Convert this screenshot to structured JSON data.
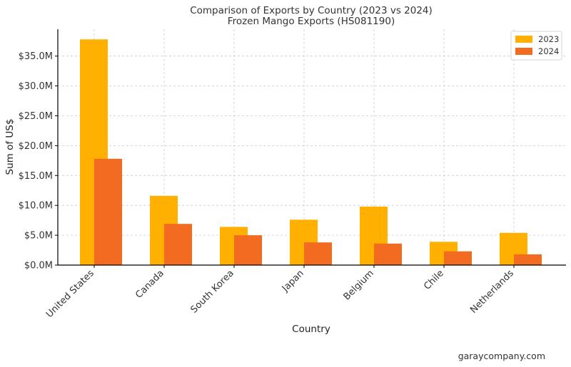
{
  "chart_data": {
    "type": "bar",
    "title": "Comparison of Exports by Country (2023 vs 2024)",
    "subtitle": "Frozen Mango Exports (HS081190)",
    "xlabel": "Country",
    "ylabel": "Sum of US$",
    "categories": [
      "United States",
      "Canada",
      "South Korea",
      "Japan",
      "Belgium",
      "Chile",
      "Netherlands"
    ],
    "series": [
      {
        "name": "2023",
        "color": "#FFB000",
        "values": [
          37.8,
          11.6,
          6.4,
          7.6,
          9.8,
          3.9,
          5.4
        ]
      },
      {
        "name": "2024",
        "color": "#F26B21",
        "values": [
          17.8,
          6.9,
          5.0,
          3.8,
          3.6,
          2.3,
          1.8
        ]
      }
    ],
    "ylim": [
      0,
      39.5
    ],
    "yticks": [
      0,
      5,
      10,
      15,
      20,
      25,
      30,
      35
    ],
    "ytick_labels": [
      "$0.0M",
      "$5.0M",
      "$10.0M",
      "$15.0M",
      "$20.0M",
      "$25.0M",
      "$30.0M",
      "$35.0M"
    ],
    "value_unit": "US$ millions",
    "grid": true,
    "legend_position": "top-right"
  },
  "watermark": "garaycompany.com"
}
